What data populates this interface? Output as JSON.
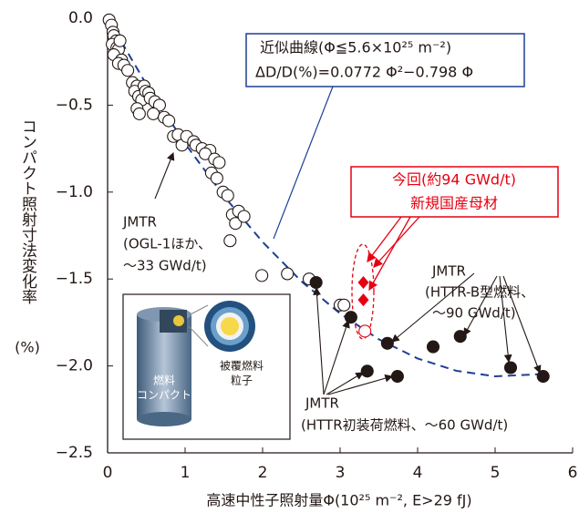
{
  "chart_data": {
    "type": "scatter",
    "xlabel": "高速中性子照射量Φ(10²⁵ m⁻², E>29 fJ)",
    "ylabel": "コンパクト照射寸法変化率",
    "ylabel_unit": "(%)",
    "xlim": [
      0,
      6
    ],
    "ylim": [
      -2.5,
      0
    ],
    "xticks": [
      0,
      1,
      2,
      3,
      4,
      5,
      6
    ],
    "yticks": [
      {
        "value": 0,
        "label": "0.0"
      },
      {
        "value": -0.5,
        "label": "−0.5"
      },
      {
        "value": -1,
        "label": "−1.0"
      },
      {
        "value": -1.5,
        "label": "−1.5"
      },
      {
        "value": -2,
        "label": "−2.0"
      },
      {
        "value": -2.5,
        "label": "−2.5"
      }
    ],
    "series": [
      {
        "marker": "open-circle",
        "color": "#231815",
        "x": [
          0.02,
          0.05,
          0.07,
          0.08,
          0.11,
          0.06,
          0.12,
          0.14,
          0.16,
          0.08,
          0.18,
          0.14,
          0.21,
          0.26,
          0.32,
          0.38,
          0.35,
          0.4,
          0.44,
          0.47,
          0.49,
          0.53,
          0.55,
          0.61,
          0.67,
          0.38,
          0.41,
          0.59,
          0.73,
          0.79,
          0.85,
          0.91,
          0.96,
          1.02,
          1.11,
          1.14,
          1.22,
          1.32,
          1.26,
          1.38,
          1.44,
          1.34,
          1.41,
          1.49,
          1.55,
          1.61,
          1.65,
          1.69,
          1.76,
          1.58,
          1.99,
          2.32,
          2.6,
          3.0,
          3.05
        ],
        "y": [
          -0.01,
          -0.04,
          -0.08,
          -0.1,
          -0.13,
          -0.15,
          -0.17,
          -0.18,
          -0.13,
          -0.21,
          -0.24,
          -0.26,
          -0.27,
          -0.3,
          -0.37,
          -0.39,
          -0.42,
          -0.45,
          -0.47,
          -0.39,
          -0.42,
          -0.43,
          -0.46,
          -0.48,
          -0.5,
          -0.52,
          -0.55,
          -0.55,
          -0.57,
          -0.59,
          -0.68,
          -0.67,
          -0.73,
          -0.68,
          -0.71,
          -0.73,
          -0.75,
          -0.76,
          -0.78,
          -0.81,
          -0.83,
          -0.89,
          -0.92,
          -1.0,
          -1.02,
          -1.13,
          -1.18,
          -1.11,
          -1.14,
          -1.28,
          -1.48,
          -1.47,
          -1.5,
          -1.65,
          -1.65
        ]
      },
      {
        "marker": "filled-circle",
        "color": "#231815",
        "x": [
          2.69,
          3.14,
          3.61,
          4.2,
          4.55,
          5.2,
          5.62,
          3.35,
          3.74
        ],
        "y": [
          -1.52,
          -1.72,
          -1.87,
          -1.89,
          -1.83,
          -2.01,
          -2.06,
          -2.03,
          -2.06
        ]
      },
      {
        "marker": "diamond",
        "color": "#e60012",
        "x": [
          3.3,
          3.3
        ],
        "y": [
          -1.52,
          -1.62
        ]
      },
      {
        "marker": "open-circle",
        "color": "#e60012",
        "x": [
          3.32
        ],
        "y": [
          -1.8
        ]
      }
    ],
    "fit_curve": {
      "color": "#1d3f94",
      "x": [
        0,
        0.5,
        1,
        1.5,
        2,
        2.5,
        3,
        3.5,
        4,
        4.5,
        5,
        5.6
      ],
      "y": [
        0,
        -0.38,
        -0.721,
        -1.023,
        -1.287,
        -1.513,
        -1.699,
        -1.847,
        -1.957,
        -2.028,
        -2.06,
        -2.047
      ]
    },
    "annotations": {
      "fit": [
        "近似曲線(Φ≦5.6×10²⁵ m⁻²)",
        "ΔD/D(%)=0.0772 Φ²−0.798 Φ"
      ],
      "new": [
        "今回(約94 GWd/t)",
        "新規国産母材"
      ],
      "ogl": [
        "JMTR",
        "(OGL-1ほか、",
        "〜33 GWd/t)"
      ],
      "httr_b": [
        "JMTR",
        "(HTTR-B型燃料、",
        "〜90 GWd/t)"
      ],
      "httr_init": [
        "JMTR",
        "(HTTR初装荷燃料、〜60 GWd/t)"
      ],
      "inset": [
        "燃料",
        "コンパクト",
        "被覆燃料",
        "粒子"
      ]
    }
  }
}
